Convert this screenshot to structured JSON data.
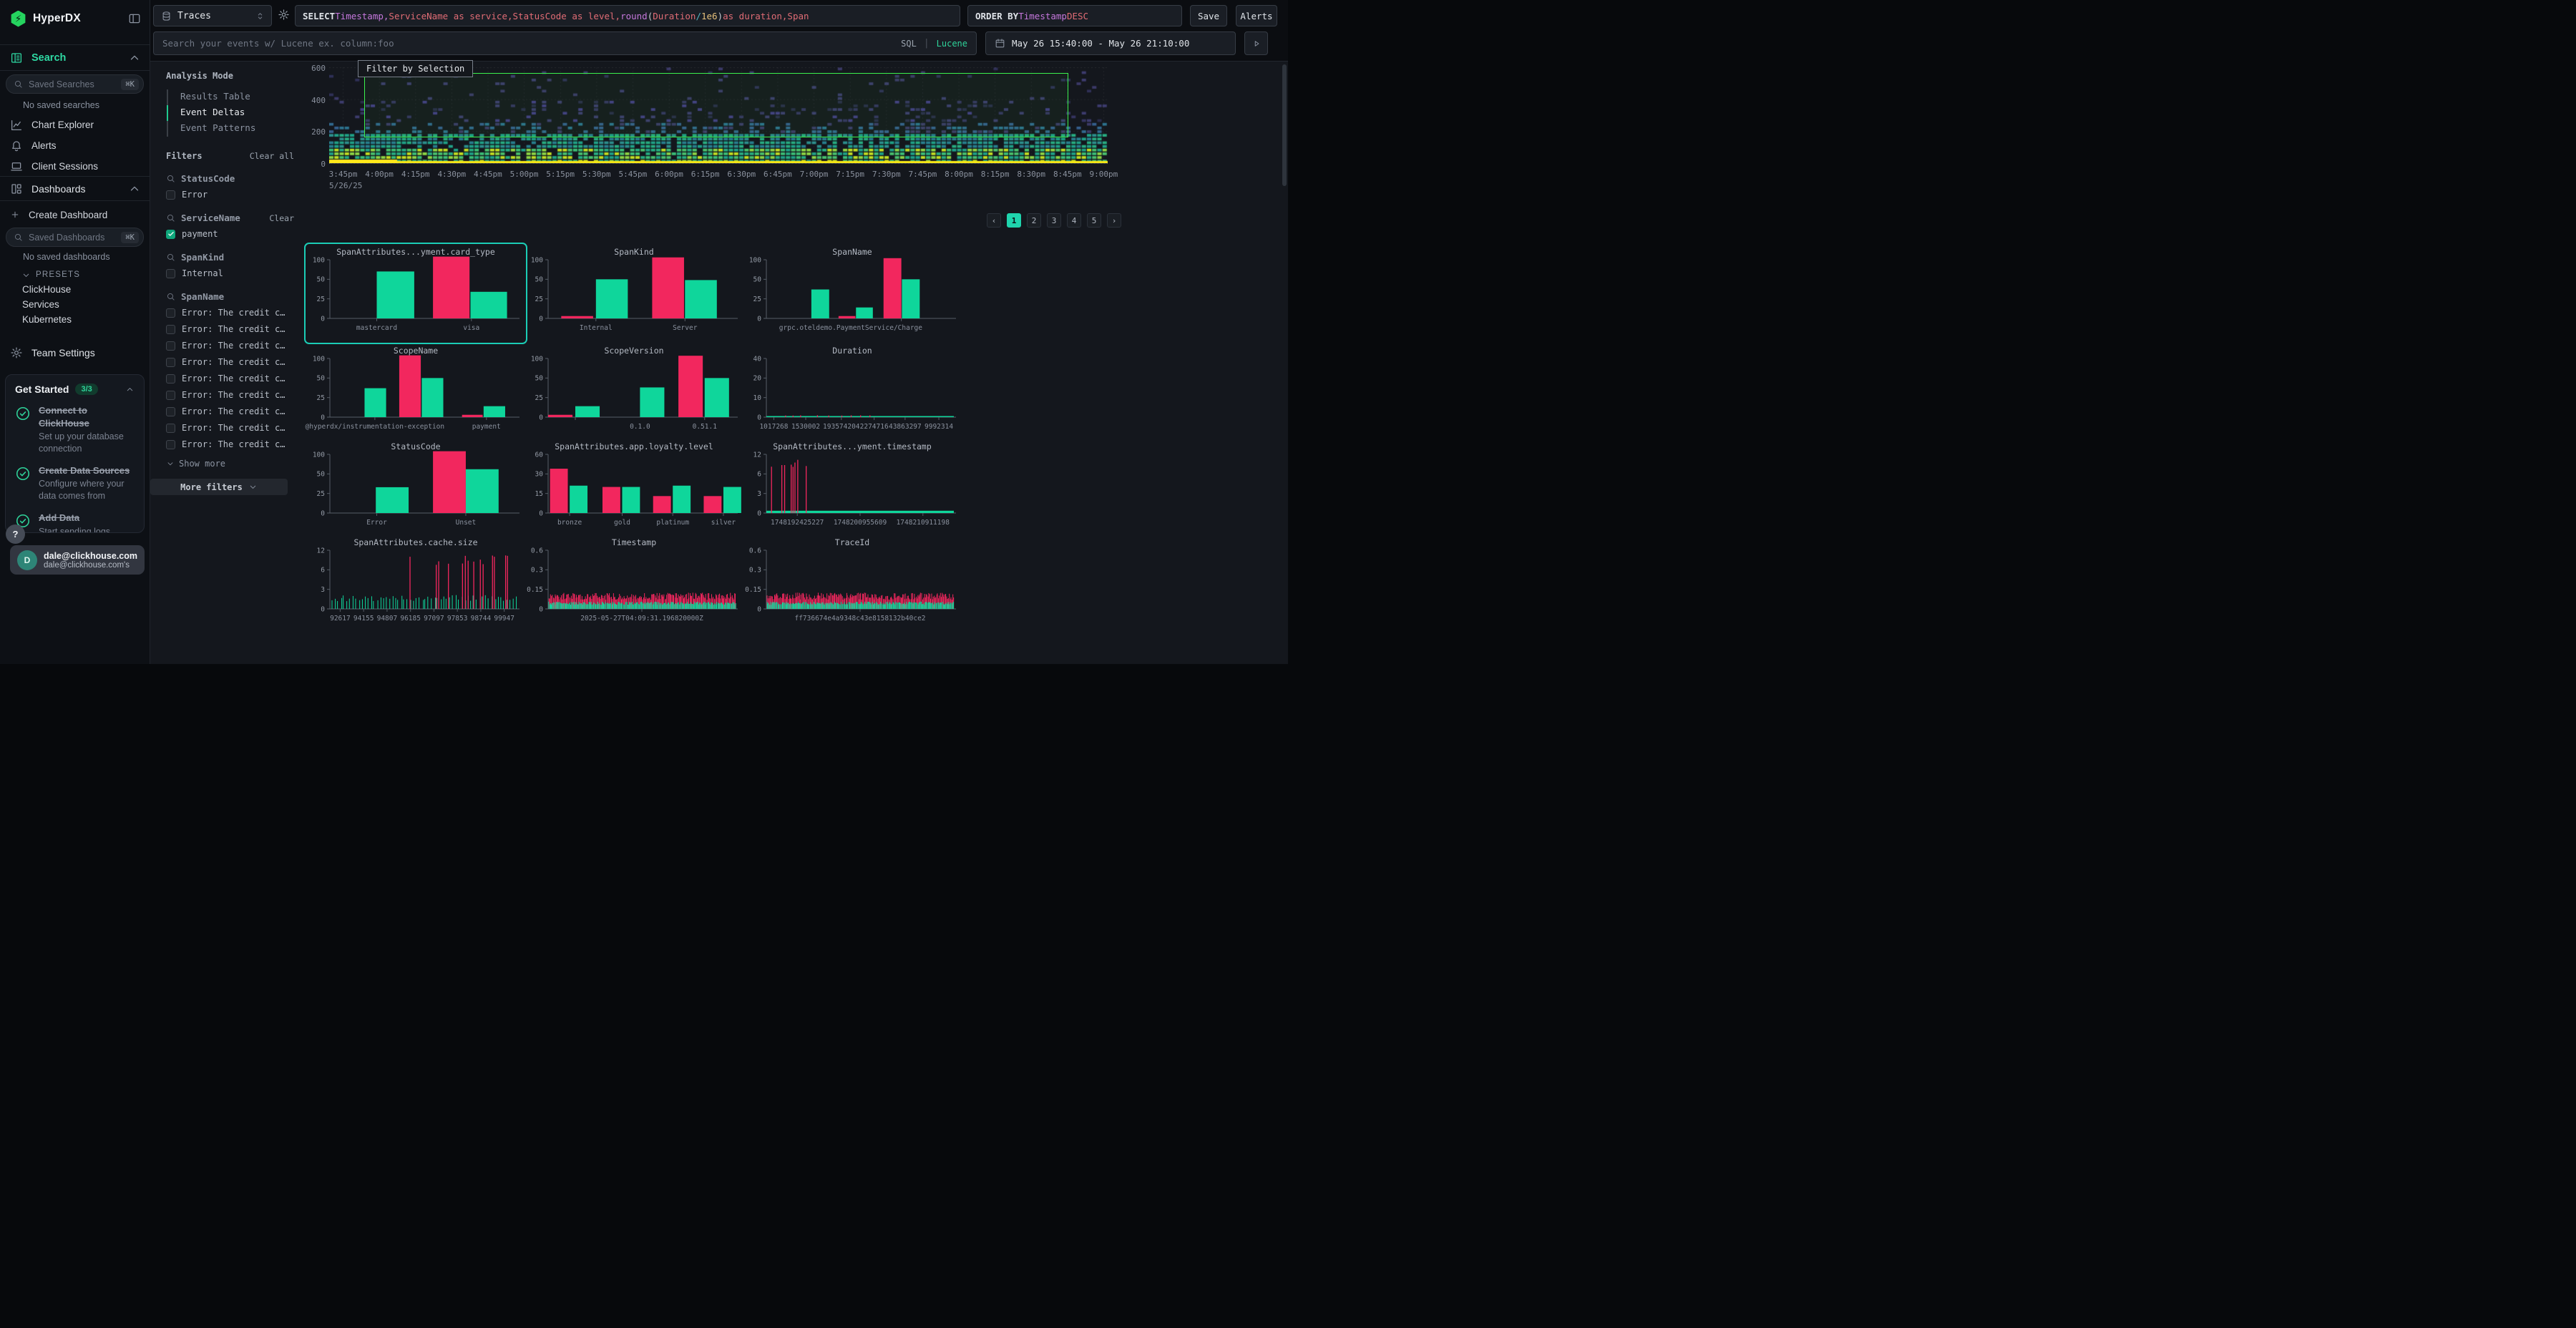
{
  "app": {
    "title": "HyperDX"
  },
  "sidebar": {
    "logo": "HyperDX",
    "search": {
      "label": "Search"
    },
    "saved_searches": {
      "placeholder": "Saved Searches",
      "shortcut": "⌘K",
      "empty": "No saved searches"
    },
    "nav": [
      {
        "label": "Chart Explorer",
        "icon": "chart"
      },
      {
        "label": "Alerts",
        "icon": "bell"
      },
      {
        "label": "Client Sessions",
        "icon": "laptop"
      }
    ],
    "dashboards": {
      "label": "Dashboards",
      "create": "Create Dashboard"
    },
    "saved_dashboards": {
      "placeholder": "Saved Dashboards",
      "shortcut": "⌘K",
      "empty": "No saved dashboards"
    },
    "presets": {
      "label": "PRESETS",
      "items": [
        "ClickHouse",
        "Services",
        "Kubernetes"
      ]
    },
    "team_settings": "Team Settings",
    "get_started": {
      "title": "Get Started",
      "badge": "3/3",
      "items": [
        {
          "title": "Connect to ClickHouse",
          "desc": "Set up your database connection"
        },
        {
          "title": "Create Data Sources",
          "desc": "Configure where your data comes from"
        },
        {
          "title": "Add Data",
          "desc": "Start sending logs, metrics, or traces"
        }
      ]
    },
    "help": "?",
    "user": {
      "initial": "D",
      "name": "dale@clickhouse.com",
      "org": "dale@clickhouse.com's"
    }
  },
  "topbar": {
    "source": "Traces",
    "sql_tokens": [
      {
        "t": "SELECT ",
        "c": "kw"
      },
      {
        "t": "Timestamp",
        "c": "col"
      },
      {
        "t": ", ",
        "c": "col"
      },
      {
        "t": "ServiceName as service",
        "c": "id"
      },
      {
        "t": ", ",
        "c": "id"
      },
      {
        "t": "StatusCode as level",
        "c": "id"
      },
      {
        "t": ", ",
        "c": "id"
      },
      {
        "t": "round",
        "c": "col"
      },
      {
        "t": "(",
        "c": "pl"
      },
      {
        "t": "Duration",
        "c": "id"
      },
      {
        "t": " / ",
        "c": "op"
      },
      {
        "t": "1e6",
        "c": "num"
      },
      {
        "t": ")",
        "c": "pl"
      },
      {
        "t": " as duration",
        "c": "id"
      },
      {
        "t": ", ",
        "c": "id"
      },
      {
        "t": "Span",
        "c": "id"
      }
    ],
    "order_by_tokens": [
      {
        "t": "ORDER BY ",
        "c": "kw"
      },
      {
        "t": "Timestamp",
        "c": "col"
      },
      {
        "t": " DESC",
        "c": "id"
      }
    ],
    "save": "Save",
    "alerts": "Alerts",
    "search_placeholder": "Search your events w/ Lucene ex. column:foo",
    "lang": {
      "sql": "SQL",
      "divider": "|",
      "lucene": "Lucene"
    },
    "date_range": "May 26 15:40:00 - May 26 21:10:00"
  },
  "panel": {
    "analysis_mode_label": "Analysis Mode",
    "modes": [
      {
        "label": "Results Table",
        "active": false
      },
      {
        "label": "Event Deltas",
        "active": true
      },
      {
        "label": "Event Patterns",
        "active": false
      }
    ],
    "filters_label": "Filters",
    "clear_all": "Clear all",
    "groups": [
      {
        "name": "StatusCode",
        "options": [
          {
            "label": "Error",
            "checked": false
          }
        ]
      },
      {
        "name": "ServiceName",
        "clear": "Clear",
        "options": [
          {
            "label": "payment",
            "checked": true
          }
        ]
      },
      {
        "name": "SpanKind",
        "options": [
          {
            "label": "Internal",
            "checked": false
          }
        ]
      },
      {
        "name": "SpanName",
        "show_more": "Show more",
        "options": [
          {
            "label": "Error: The credit card …",
            "checked": false
          },
          {
            "label": "Error: The credit card …",
            "checked": false
          },
          {
            "label": "Error: The credit card …",
            "checked": false
          },
          {
            "label": "Error: The credit card …",
            "checked": false
          },
          {
            "label": "Error: The credit card …",
            "checked": false
          },
          {
            "label": "Error: The credit card …",
            "checked": false
          },
          {
            "label": "Error: The credit card …",
            "checked": false
          },
          {
            "label": "Error: The credit card …",
            "checked": false
          },
          {
            "label": "Error: The credit card …",
            "checked": false
          }
        ]
      }
    ],
    "more_filters": "More filters"
  },
  "chart_data": {
    "heatmap": {
      "type": "heatmap",
      "filter_button": "Filter by Selection",
      "y_ticks": [
        600,
        400,
        200,
        0
      ],
      "x_ticks": [
        "3:45pm",
        "4:00pm",
        "4:15pm",
        "4:30pm",
        "4:45pm",
        "5:00pm",
        "5:15pm",
        "5:30pm",
        "5:45pm",
        "6:00pm",
        "6:15pm",
        "6:30pm",
        "6:45pm",
        "7:00pm",
        "7:15pm",
        "7:30pm",
        "7:45pm",
        "8:00pm",
        "8:15pm",
        "8:30pm",
        "8:45pm",
        "9:00pm"
      ],
      "date_label": "5/26/25",
      "selection": {
        "x0": 0.045,
        "y0": 0.06,
        "x1": 0.948,
        "y1": 0.72
      }
    },
    "histograms": [
      {
        "type": "bar",
        "title": "SpanAttributes...yment.card_type",
        "selected": true,
        "y_ticks": [
          0,
          25,
          50,
          100
        ],
        "bars": [
          [
            0.25,
            0.2,
            70,
            "g"
          ],
          [
            0.55,
            0.195,
            108,
            "r"
          ],
          [
            0.75,
            0.195,
            34,
            "g"
          ]
        ],
        "x_ticks": [
          [
            0.25,
            "mastercard",
            1
          ],
          [
            0.755,
            "visa",
            1
          ]
        ]
      },
      {
        "type": "bar",
        "title": "SpanKind",
        "y_ticks": [
          0,
          25,
          50,
          100
        ],
        "bars": [
          [
            0.07,
            0.17,
            3,
            "r"
          ],
          [
            0.255,
            0.17,
            50,
            "g"
          ],
          [
            0.555,
            0.17,
            106,
            "r"
          ],
          [
            0.73,
            0.17,
            49,
            "g"
          ]
        ],
        "x_ticks": [
          [
            0.255,
            "Internal",
            1
          ],
          [
            0.73,
            "Server",
            1
          ]
        ]
      },
      {
        "type": "bar",
        "title": "SpanName",
        "y_ticks": [
          0,
          25,
          50,
          100
        ],
        "bars": [
          [
            0.24,
            0.095,
            37,
            "g"
          ],
          [
            0.385,
            0.09,
            3,
            "r"
          ],
          [
            0.478,
            0.09,
            14,
            "g"
          ],
          [
            0.625,
            0.095,
            104,
            "r"
          ],
          [
            0.723,
            0.095,
            50,
            "g"
          ]
        ],
        "x_ticks": [
          [
            0.72,
            "",
            1
          ],
          [
            0.45,
            "grpc.oteldemo.PaymentService/Charge",
            0
          ]
        ]
      },
      {
        "type": "bar",
        "title": "ScopeName",
        "y_ticks": [
          0,
          25,
          50,
          100
        ],
        "bars": [
          [
            0.185,
            0.115,
            37,
            "g"
          ],
          [
            0.37,
            0.115,
            108,
            "r"
          ],
          [
            0.49,
            0.115,
            50,
            "g"
          ],
          [
            0.705,
            0.11,
            3,
            "r"
          ],
          [
            0.82,
            0.115,
            14,
            "g"
          ]
        ],
        "x_ticks": [
          [
            0.24,
            "@hyperdx/instrumentation-exception",
            1
          ],
          [
            0.835,
            "payment",
            1
          ]
        ]
      },
      {
        "type": "bar",
        "title": "ScopeVersion",
        "y_ticks": [
          0,
          25,
          50,
          100
        ],
        "bars": [
          [
            0.0,
            0.13,
            3,
            "r"
          ],
          [
            0.145,
            0.13,
            14,
            "g"
          ],
          [
            0.49,
            0.13,
            38,
            "g"
          ],
          [
            0.695,
            0.13,
            107,
            "r"
          ],
          [
            0.835,
            0.13,
            50,
            "g"
          ]
        ],
        "x_ticks": [
          [
            0.145,
            "",
            1
          ],
          [
            0.49,
            "0.1.0",
            0
          ],
          [
            0.835,
            "0.51.1",
            1
          ]
        ]
      },
      {
        "type": "bar",
        "title": "Duration",
        "y_ticks": [
          0,
          10,
          20,
          40
        ],
        "bars": [],
        "marks": [
          {
            "k": "base",
            "v": 0.5,
            "c": "g"
          },
          {
            "k": "spikes",
            "v": 0.9,
            "c": "r",
            "ps": [
              0.1,
              0.14,
              0.18,
              0.27,
              0.33,
              0.4,
              0.45,
              0.5,
              0.55
            ]
          }
        ],
        "x_ticks": [
          [
            0.04,
            "1017268",
            1
          ],
          [
            0.21,
            "1530002",
            1
          ],
          [
            0.4,
            "193574204",
            1
          ],
          [
            0.575,
            "2274716",
            1
          ],
          [
            0.74,
            "43863297",
            1
          ],
          [
            0.92,
            "9992314",
            1
          ]
        ]
      },
      {
        "type": "bar",
        "title": "StatusCode",
        "y_ticks": [
          0,
          25,
          50,
          100
        ],
        "bars": [
          [
            0.245,
            0.175,
            33,
            "g"
          ],
          [
            0.55,
            0.175,
            108,
            "r"
          ],
          [
            0.725,
            0.175,
            62,
            "g"
          ]
        ],
        "x_ticks": [
          [
            0.25,
            "Error",
            1
          ],
          [
            0.725,
            "Unset",
            1
          ]
        ]
      },
      {
        "type": "bar",
        "title": "SpanAttributes.app.loyalty.level",
        "y_ticks": [
          0,
          15,
          30,
          60
        ],
        "bars": [
          [
            0.01,
            0.095,
            38,
            "r"
          ],
          [
            0.115,
            0.095,
            21,
            "g"
          ],
          [
            0.29,
            0.095,
            20,
            "r"
          ],
          [
            0.395,
            0.095,
            20,
            "g"
          ],
          [
            0.56,
            0.095,
            13,
            "r"
          ],
          [
            0.665,
            0.095,
            21,
            "g"
          ],
          [
            0.83,
            0.095,
            13,
            "r"
          ],
          [
            0.935,
            0.095,
            20,
            "g"
          ]
        ],
        "x_ticks": [
          [
            0.115,
            "bronze",
            1
          ],
          [
            0.395,
            "gold",
            1
          ],
          [
            0.665,
            "platinum",
            1
          ],
          [
            0.935,
            "silver",
            1
          ]
        ]
      },
      {
        "type": "bar",
        "title": "SpanAttributes...yment.timestamp",
        "y_ticks": [
          0,
          3,
          6,
          12
        ],
        "bars": [],
        "marks": [
          {
            "k": "base",
            "v": 0.35,
            "c": "g"
          },
          {
            "k": "spikes",
            "v": 9,
            "c": "r",
            "ps": [
              0.025,
              0.08,
              0.095,
              0.13,
              0.14,
              0.15,
              0.165,
              0.21
            ]
          }
        ],
        "x_ticks": [
          [
            0.165,
            "1748192425227",
            1
          ],
          [
            0.5,
            "1748200955609",
            1
          ],
          [
            0.835,
            "1748210911198",
            1
          ]
        ]
      },
      {
        "type": "bar",
        "title": "SpanAttributes.cache.size",
        "y_ticks": [
          0,
          3,
          6,
          12
        ],
        "bars": [],
        "marks": [
          {
            "k": "comb",
            "v": 1.7,
            "c": "g",
            "n": 62
          },
          {
            "k": "spikes",
            "v": 9,
            "c": "r",
            "ps": [
              0.425,
              0.565,
              0.578,
              0.63,
              0.705,
              0.72,
              0.735,
              0.765,
              0.8,
              0.815,
              0.865,
              0.875,
              0.935,
              0.945
            ]
          }
        ],
        "x_ticks": [
          [
            0.055,
            "92617",
            1
          ],
          [
            0.18,
            "94155",
            1
          ],
          [
            0.305,
            "94807",
            1
          ],
          [
            0.43,
            "96185",
            1
          ],
          [
            0.555,
            "97097",
            1
          ],
          [
            0.68,
            "97853",
            1
          ],
          [
            0.805,
            "98744",
            1
          ],
          [
            0.93,
            "99947",
            1
          ]
        ]
      },
      {
        "type": "bar",
        "title": "Timestamp",
        "y_ticks": [
          0,
          0.15,
          0.3,
          0.6
        ],
        "bars": [],
        "marks": [
          {
            "k": "comb",
            "v": 0.1,
            "c": "r",
            "n": 210
          },
          {
            "k": "comb",
            "v": 0.045,
            "c": "g",
            "n": 230
          }
        ],
        "x_ticks": [
          [
            0.5,
            "2025-05-27T04:09:31.196820000Z",
            1
          ]
        ]
      },
      {
        "type": "bar",
        "title": "TraceId",
        "y_ticks": [
          0,
          0.15,
          0.3,
          0.6
        ],
        "bars": [],
        "marks": [
          {
            "k": "comb",
            "v": 0.1,
            "c": "r",
            "n": 210
          },
          {
            "k": "comb",
            "v": 0.045,
            "c": "g",
            "n": 230
          }
        ],
        "x_ticks": [
          [
            0.5,
            "ff736674e4a9348c43e8158132b40ce2",
            1
          ]
        ]
      }
    ]
  },
  "pagination": {
    "prev": "‹",
    "pages": [
      "1",
      "2",
      "3",
      "4",
      "5"
    ],
    "active": "1",
    "next": "›"
  },
  "colors": {
    "bar_green": "#0fd69b",
    "bar_red": "#f2275e",
    "selection": "#3bf14d",
    "accent": "#2ed9a3",
    "selected_border": "#1bcdb6",
    "pagination_active": "#1fd4ad"
  }
}
